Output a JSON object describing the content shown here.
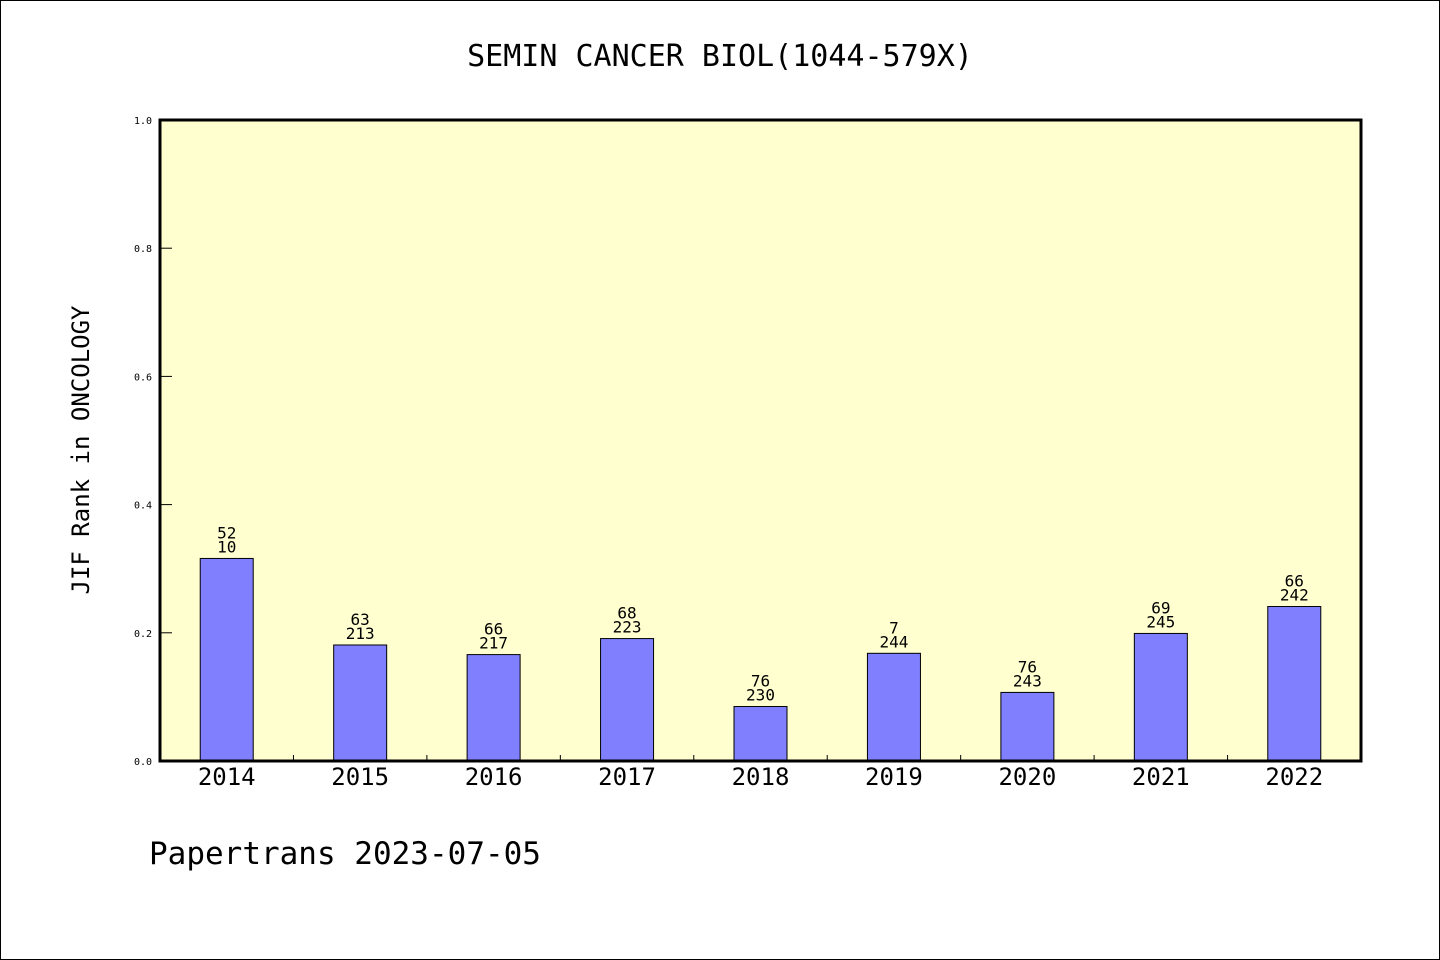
{
  "chart_data": {
    "type": "bar",
    "title": "SEMIN CANCER BIOL(1044-579X)",
    "xlabel": "",
    "ylabel": "JIF Rank in ONCOLOGY",
    "ylim": [
      0,
      1.0
    ],
    "yticks": [
      "0.0",
      "0.2",
      "0.4",
      "0.6",
      "0.8",
      "1.0"
    ],
    "grid": false,
    "categories": [
      "2014",
      "2015",
      "2016",
      "2017",
      "2018",
      "2019",
      "2020",
      "2021",
      "2022"
    ],
    "values": [
      0.316,
      0.181,
      0.166,
      0.191,
      0.085,
      0.168,
      0.107,
      0.199,
      0.241
    ],
    "labels_top": [
      "52",
      "63",
      "66",
      "68",
      "76",
      "7",
      "76",
      "69",
      "66"
    ],
    "labels_bottom": [
      "10",
      "213",
      "217",
      "223",
      "230",
      "244",
      "243",
      "245",
      "242"
    ],
    "colors": {
      "plot_bg": "#ffffd0",
      "bar": "#8080ff"
    }
  },
  "footer": "Papertrans 2023-07-05"
}
